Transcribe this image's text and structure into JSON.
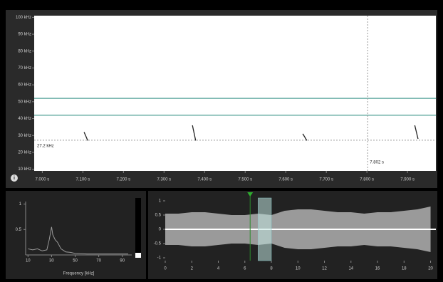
{
  "chart_data": [
    {
      "type": "spectrogram",
      "xlim": [
        6.98,
        7.97
      ],
      "ylim": [
        9,
        101
      ],
      "yticks": [
        {
          "value": 100,
          "label": "100 kHz"
        },
        {
          "value": 90,
          "label": "90 kHz"
        },
        {
          "value": 80,
          "label": "80 kHz"
        },
        {
          "value": 70,
          "label": "70 kHz"
        },
        {
          "value": 60,
          "label": "60 kHz"
        },
        {
          "value": 50,
          "label": "50 kHz"
        },
        {
          "value": 40,
          "label": "40 kHz"
        },
        {
          "value": 30,
          "label": "30 kHz"
        },
        {
          "value": 20,
          "label": "20 kHz"
        },
        {
          "value": 10,
          "label": "10 kHz"
        }
      ],
      "xticks": [
        {
          "value": 7.0,
          "label": "7.000 s"
        },
        {
          "value": 7.1,
          "label": "7.100 s"
        },
        {
          "value": 7.2,
          "label": "7.200 s"
        },
        {
          "value": 7.3,
          "label": "7.300 s"
        },
        {
          "value": 7.4,
          "label": "7.400 s"
        },
        {
          "value": 7.5,
          "label": "7.500 s"
        },
        {
          "value": 7.6,
          "label": "7.600 s"
        },
        {
          "value": 7.7,
          "label": "7.700 s"
        },
        {
          "value": 7.8,
          "label": "7.800 s"
        },
        {
          "value": 7.9,
          "label": "7.900 s"
        }
      ],
      "hlines": [
        52,
        42
      ],
      "hline_color": "#6aaea6",
      "cursor": {
        "x": 7.802,
        "y": 27.2,
        "x_label": "7.802 s",
        "y_label": "27.2 kHz"
      },
      "calls": [
        {
          "x": [
            7.103,
            7.112
          ],
          "y": [
            32,
            27
          ]
        },
        {
          "x": [
            7.37,
            7.378
          ],
          "y": [
            36,
            27
          ]
        },
        {
          "x": [
            7.642,
            7.652
          ],
          "y": [
            31,
            27
          ]
        },
        {
          "x": [
            7.918,
            7.926
          ],
          "y": [
            36,
            28
          ]
        }
      ],
      "call_color": "#222222"
    },
    {
      "type": "line",
      "xlim": [
        8,
        98
      ],
      "ylim": [
        0,
        1.05
      ],
      "xticks": [
        10,
        30,
        50,
        70,
        90
      ],
      "yticks": [
        0.5,
        1
      ],
      "x_label": "Frequency [kHz]",
      "x": [
        10,
        14,
        18,
        22,
        26,
        28,
        30,
        31,
        33,
        35,
        38,
        42,
        46,
        50,
        60,
        70,
        80,
        90,
        95
      ],
      "values": [
        0.12,
        0.1,
        0.12,
        0.08,
        0.1,
        0.3,
        0.55,
        0.4,
        0.3,
        0.25,
        0.12,
        0.06,
        0.05,
        0.03,
        0.02,
        0.02,
        0.02,
        0.02,
        0.02
      ],
      "color": "#9a9a9a"
    },
    {
      "type": "waveform",
      "xlim": [
        0,
        20.4
      ],
      "ylim": [
        -1.1,
        1.1
      ],
      "xticks": [
        0,
        2,
        4,
        6,
        8,
        10,
        12,
        14,
        16,
        18,
        20
      ],
      "yticks": [
        1,
        0.5,
        0,
        -0.5,
        -1
      ],
      "x": [
        0,
        1,
        2,
        3,
        4,
        5,
        6,
        7,
        8,
        9,
        10,
        11,
        12,
        13,
        14,
        15,
        16,
        17,
        18,
        19,
        20
      ],
      "values": [
        0.55,
        0.55,
        0.6,
        0.6,
        0.55,
        0.5,
        0.5,
        0.55,
        0.5,
        0.65,
        0.7,
        0.7,
        0.65,
        0.6,
        0.6,
        0.55,
        0.6,
        0.6,
        0.65,
        0.7,
        0.8
      ],
      "color": "#9a9a9a",
      "selection": [
        7,
        8
      ],
      "playhead": 6.4
    }
  ]
}
